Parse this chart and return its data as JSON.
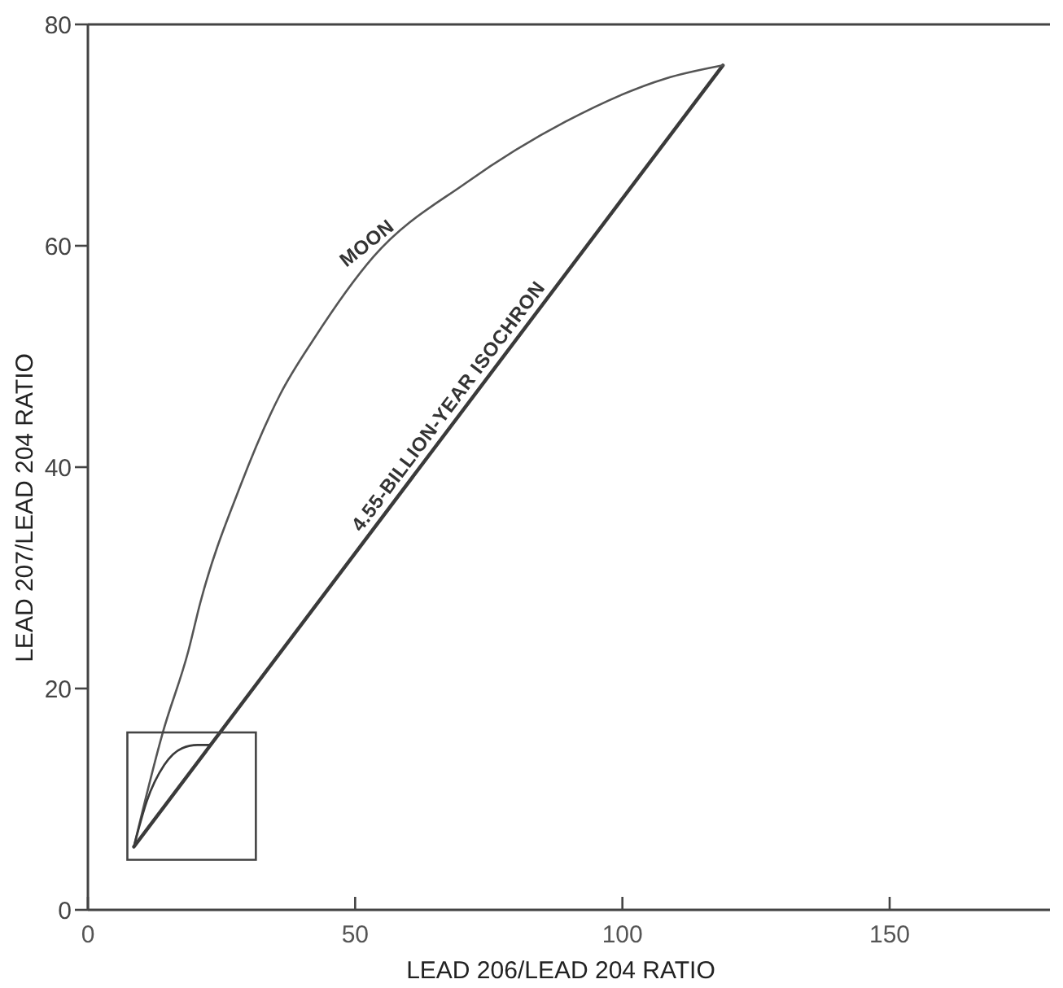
{
  "chart_data": {
    "type": "line",
    "xlabel": "LEAD 206/LEAD 204 RATIO",
    "ylabel": "LEAD 207/LEAD 204 RATIO",
    "xlim": [
      0,
      180
    ],
    "ylim": [
      0,
      80
    ],
    "xticks": [
      0,
      50,
      100,
      150
    ],
    "yticks": [
      0,
      20,
      40,
      60,
      80
    ],
    "grid": false,
    "marker": "none",
    "line_style": "solid",
    "series": [
      {
        "color": "#3a3a3a",
        "x": [
          8.6,
          118.8
        ],
        "values": [
          5.7,
          76.3
        ]
      },
      {
        "color": "#555555",
        "x": [
          8.6,
          14,
          18.8,
          21,
          28.6,
          36,
          42.3,
          53.4,
          70.8,
          89.3,
          108,
          118.8
        ],
        "values": [
          5.7,
          16,
          23.4,
          27.7,
          38.4,
          46.6,
          51.6,
          59,
          65.7,
          71.2,
          75.1,
          76.3
        ]
      },
      {
        "color": "#3a3a3a",
        "x": [
          8.6,
          11,
          14.3,
          17.6,
          20.5,
          22.6,
          23.2
        ],
        "values": [
          5.7,
          9.8,
          13.1,
          14.6,
          14.9,
          14.9,
          15.0
        ]
      }
    ],
    "annotations": [
      {
        "text": "MOON",
        "x": 53.9,
        "y": 59.2
      },
      {
        "text": "4.55-BILLION-YEAR ISOCHRON",
        "x": 69.6,
        "y": 44.7
      }
    ]
  }
}
